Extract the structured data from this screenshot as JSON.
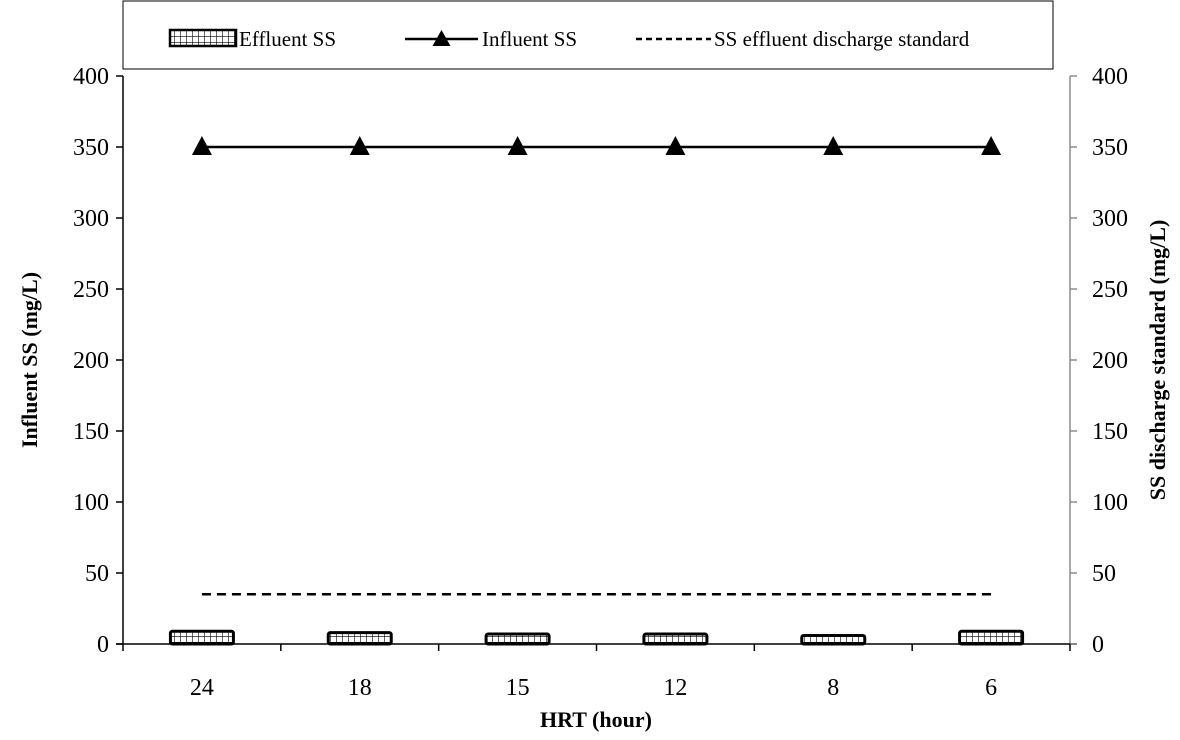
{
  "chart_data": {
    "type": "bar",
    "categories": [
      "24",
      "18",
      "15",
      "12",
      "8",
      "6"
    ],
    "xlabel": "HRT (hour)",
    "ylabel": "Influent SS (mg/L)",
    "y2label": "SS discharge standard (mg/L)",
    "ylim": [
      0,
      400
    ],
    "y2lim": [
      0,
      400
    ],
    "yticks": [
      0,
      50,
      100,
      150,
      200,
      250,
      300,
      350,
      400
    ],
    "grid": false,
    "legend_position": "top",
    "series": [
      {
        "name": "Effluent SS",
        "kind": "bar",
        "pattern": "grid",
        "values": [
          9,
          8,
          7,
          7,
          6,
          9
        ]
      },
      {
        "name": "Influent SS",
        "kind": "line",
        "marker": "triangle",
        "values": [
          350,
          350,
          350,
          350,
          350,
          350
        ]
      },
      {
        "name": "SS effluent discharge standard",
        "kind": "line",
        "dash": "dashed",
        "values": [
          35,
          35,
          35,
          35,
          35,
          35
        ]
      }
    ]
  }
}
